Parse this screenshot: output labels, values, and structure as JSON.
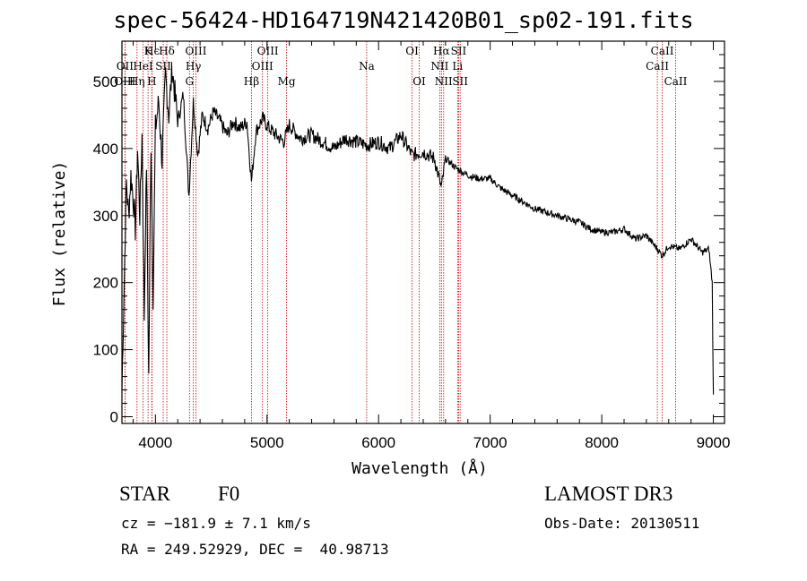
{
  "colors": {
    "axis": "#000000",
    "spectrum": "#000000",
    "line_marker": "#cc0000"
  },
  "chart_data": {
    "type": "line",
    "title": "spec-56424-HD164719N421420B01_sp02-191.fits",
    "xlabel": "Wavelength (Å)",
    "ylabel": "Flux (relative)",
    "xlim": [
      3700,
      9100
    ],
    "ylim": [
      -10,
      560
    ],
    "x_ticks": [
      4000,
      5000,
      6000,
      7000,
      8000,
      9000
    ],
    "y_ticks": [
      0,
      100,
      200,
      300,
      400,
      500
    ],
    "spectrum": {
      "x": [
        3700,
        3720,
        3740,
        3760,
        3780,
        3800,
        3820,
        3840,
        3860,
        3880,
        3900,
        3920,
        3940,
        3960,
        3980,
        4000,
        4030,
        4060,
        4090,
        4120,
        4150,
        4200,
        4250,
        4300,
        4340,
        4380,
        4420,
        4470,
        4520,
        4580,
        4640,
        4700,
        4760,
        4820,
        4861,
        4900,
        4960,
        5020,
        5080,
        5150,
        5200,
        5300,
        5400,
        5500,
        5600,
        5700,
        5800,
        5900,
        6000,
        6100,
        6200,
        6300,
        6400,
        6500,
        6563,
        6600,
        6700,
        6800,
        6900,
        7000,
        7100,
        7200,
        7300,
        7400,
        7500,
        7600,
        7700,
        7800,
        7900,
        8000,
        8100,
        8200,
        8300,
        8400,
        8500,
        8542,
        8600,
        8700,
        8800,
        8900,
        8960,
        8990,
        9000
      ],
      "y": [
        40,
        200,
        350,
        300,
        360,
        330,
        280,
        400,
        300,
        420,
        150,
        380,
        60,
        410,
        180,
        430,
        470,
        380,
        510,
        450,
        520,
        440,
        480,
        330,
        470,
        390,
        450,
        430,
        455,
        440,
        420,
        440,
        430,
        440,
        350,
        425,
        445,
        430,
        420,
        410,
        435,
        415,
        420,
        410,
        400,
        415,
        410,
        405,
        410,
        400,
        420,
        390,
        395,
        385,
        340,
        385,
        370,
        360,
        355,
        355,
        340,
        330,
        320,
        310,
        305,
        300,
        295,
        290,
        280,
        275,
        275,
        280,
        265,
        270,
        250,
        240,
        255,
        250,
        265,
        245,
        250,
        200,
        30
      ]
    },
    "lines_top": [
      {
        "label": "Hϵ",
        "wl": 3970
      },
      {
        "label": "K",
        "wl": 3934
      },
      {
        "label": "Hδ",
        "wl": 4102
      },
      {
        "label": "OIII",
        "wl": 4363
      },
      {
        "label": "OIII",
        "wl": 5007
      },
      {
        "label": "OI",
        "wl": 6300
      },
      {
        "label": "Hα",
        "wl": 6563
      },
      {
        "label": "SII",
        "wl": 6717
      },
      {
        "label": "CaII",
        "wl": 8542
      }
    ],
    "lines_mid": [
      {
        "label": "OII",
        "wl": 3727
      },
      {
        "label": "HeI",
        "wl": 3889
      },
      {
        "label": "SII",
        "wl": 4070
      },
      {
        "label": "Hγ",
        "wl": 4340
      },
      {
        "label": "OIII",
        "wl": 4959
      },
      {
        "label": "Na",
        "wl": 5893
      },
      {
        "label": "NII",
        "wl": 6548
      },
      {
        "label": "Li",
        "wl": 6708
      },
      {
        "label": "CaII",
        "wl": 8498
      }
    ],
    "lines_bot": [
      {
        "label": "OIII",
        "wl": 3727
      },
      {
        "label": "Hη",
        "wl": 3835
      },
      {
        "label": "H",
        "wl": 3968
      },
      {
        "label": "G",
        "wl": 4305
      },
      {
        "label": "Hβ",
        "wl": 4861
      },
      {
        "label": "Mg",
        "wl": 5175
      },
      {
        "label": "OI",
        "wl": 6364
      },
      {
        "label": "NII",
        "wl": 6583
      },
      {
        "label": "SII",
        "wl": 6731
      },
      {
        "label": "CaII",
        "wl": 8662
      }
    ]
  },
  "info": {
    "object_type": "STAR",
    "subclass": "F0",
    "survey": "LAMOST DR3",
    "redshift": "cz = −181.9 ± 7.1 km/s",
    "obs_date": "Obs-Date: 20130511",
    "coords": "RA = 249.52929, DEC =  40.98713"
  }
}
